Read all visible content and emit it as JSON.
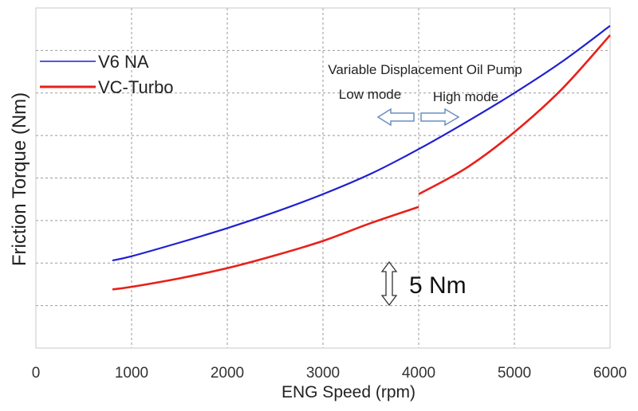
{
  "chart_data": {
    "type": "line",
    "xlabel": "ENG Speed (rpm)",
    "ylabel": "Friction Torque (Nm)",
    "xlim": [
      0,
      6000
    ],
    "xticks": [
      "0",
      "1000",
      "2000",
      "3000",
      "4000",
      "5000",
      "6000"
    ],
    "ylim": [
      0,
      40
    ],
    "y_unit_note": "relative scale; y tick labels not shown, gridline spacing = 5 Nm",
    "grid": true,
    "legend_position": "top-left",
    "series": [
      {
        "name": "V6 NA",
        "color": "#1f1fd0",
        "segments": [
          {
            "x": [
              800,
              1000,
              1500,
              2000,
              2500,
              3000,
              3500,
              4000,
              4500,
              5000,
              5500,
              6000
            ],
            "y": [
              10.3,
              10.8,
              12.4,
              14.1,
              16.0,
              18.1,
              20.5,
              23.4,
              26.6,
              30.0,
              33.7,
              37.9
            ]
          }
        ]
      },
      {
        "name": "VC-Turbo",
        "color": "#e8201a",
        "segments": [
          {
            "x": [
              800,
              1000,
              1500,
              2000,
              2500,
              3000,
              3500,
              4000
            ],
            "y": [
              6.9,
              7.2,
              8.2,
              9.4,
              10.9,
              12.6,
              14.7,
              16.6
            ]
          },
          {
            "x": [
              4000,
              4500,
              5000,
              5500,
              6000
            ],
            "y": [
              18.1,
              21.2,
              25.4,
              30.5,
              36.8
            ]
          }
        ]
      }
    ],
    "annotations": {
      "pump_title": "Variable Displacement Oil Pump",
      "low_mode": "Low mode",
      "high_mode": "High mode",
      "scale_label": "5 Nm"
    }
  }
}
